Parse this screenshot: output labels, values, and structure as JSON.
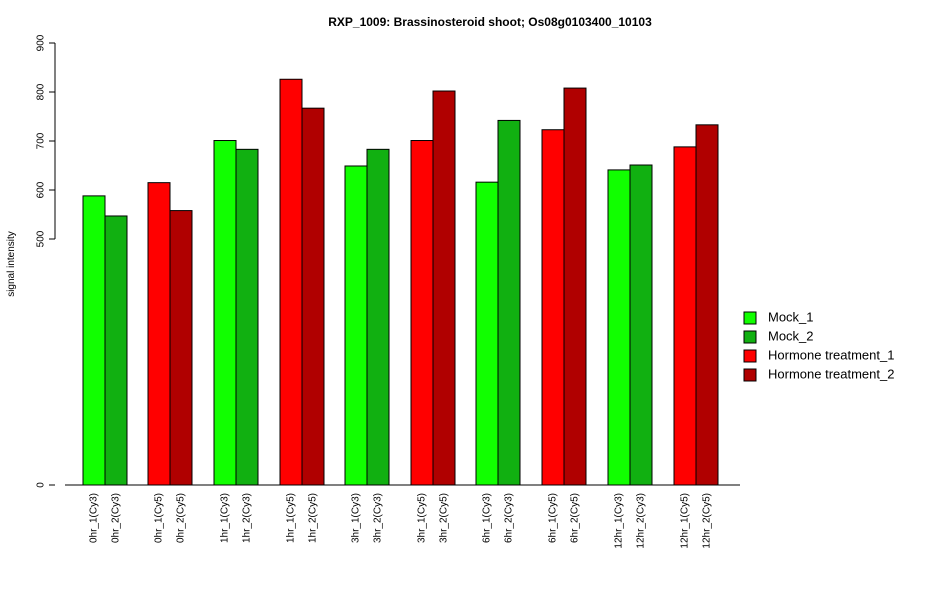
{
  "chart_data": {
    "type": "bar",
    "title": "RXP_1009: Brassinosteroid shoot; Os08g0103400_10103",
    "ylabel": "signal intensity",
    "xlabel": "",
    "yticks": [
      0,
      500,
      600,
      700,
      800,
      900
    ],
    "scale_note": "broken y-axis: 0 then 500–900",
    "categories": [
      "0hr_1(Cy3)",
      "0hr_2(Cy3)",
      "0hr_1(Cy5)",
      "0hr_2(Cy5)",
      "1hr_1(Cy3)",
      "1hr_2(Cy3)",
      "1hr_1(Cy5)",
      "1hr_2(Cy5)",
      "3hr_1(Cy3)",
      "3hr_2(Cy3)",
      "3hr_1(Cy5)",
      "3hr_2(Cy5)",
      "6hr_1(Cy3)",
      "6hr_2(Cy3)",
      "6hr_1(Cy5)",
      "6hr_2(Cy5)",
      "12hr_1(Cy3)",
      "12hr_2(Cy3)",
      "12hr_1(Cy5)",
      "12hr_2(Cy5)"
    ],
    "values": [
      588,
      547,
      615,
      558,
      701,
      683,
      826,
      767,
      649,
      683,
      701,
      802,
      616,
      742,
      723,
      808,
      641,
      651,
      688,
      733
    ],
    "bar_series": [
      0,
      1,
      2,
      3,
      0,
      1,
      2,
      3,
      0,
      1,
      2,
      3,
      0,
      1,
      2,
      3,
      0,
      1,
      2,
      3
    ],
    "series": [
      {
        "name": "Mock_1",
        "color": "#11ff00"
      },
      {
        "name": "Mock_2",
        "color": "#11b011"
      },
      {
        "name": "Hormone treatment_1",
        "color": "#ff0000"
      },
      {
        "name": "Hormone treatment_2",
        "color": "#b00000"
      }
    ],
    "legend_position": "right",
    "grid": false
  }
}
